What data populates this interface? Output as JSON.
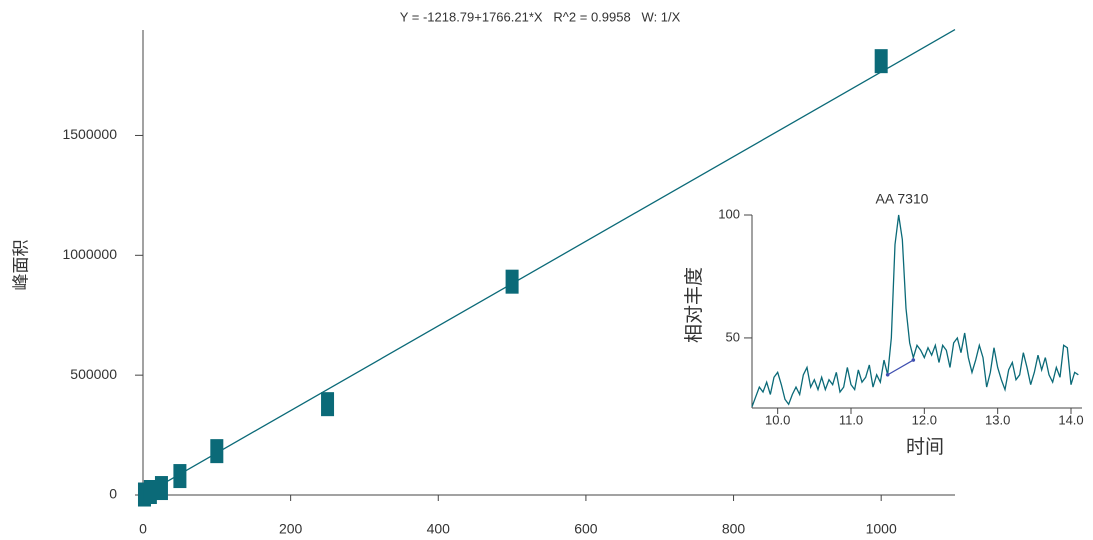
{
  "chart_data": [
    {
      "type": "scatter",
      "title": "Y = -1218.79+1766.21*X   R^2 = 0.9958   W: 1/X",
      "y_label": "峰面积",
      "x": [
        2,
        10,
        25,
        50,
        100,
        250,
        500,
        1000
      ],
      "series": [
        {
          "color": "#0b6a78",
          "values": [
            2000,
            12500,
            29000,
            79000,
            183000,
            379000,
            890000,
            1810000
          ]
        }
      ],
      "fit": {
        "color": "#0b6a78",
        "x": [
          0,
          1100
        ],
        "values": [
          -1218.79,
          1941612.21
        ]
      },
      "xlim": [
        0,
        1100
      ],
      "ylim": [
        0,
        1940000
      ],
      "xticks": [
        0,
        200,
        400,
        600,
        800,
        1000
      ],
      "yticks": [
        0,
        500000,
        1000000,
        1500000
      ]
    },
    {
      "type": "line",
      "annotation": "AA  7310",
      "x_label": "时间",
      "y_label": "相对丰度",
      "x": [
        9.65,
        9.7,
        9.75,
        9.8,
        9.85,
        9.9,
        9.95,
        10.0,
        10.05,
        10.1,
        10.15,
        10.2,
        10.25,
        10.3,
        10.35,
        10.4,
        10.45,
        10.5,
        10.55,
        10.6,
        10.65,
        10.7,
        10.75,
        10.8,
        10.85,
        10.9,
        10.95,
        11.0,
        11.05,
        11.1,
        11.15,
        11.2,
        11.25,
        11.3,
        11.35,
        11.4,
        11.45,
        11.5,
        11.55,
        11.6,
        11.65,
        11.7,
        11.75,
        11.8,
        11.85,
        11.9,
        11.95,
        12.0,
        12.05,
        12.1,
        12.15,
        12.2,
        12.25,
        12.3,
        12.35,
        12.4,
        12.45,
        12.5,
        12.55,
        12.6,
        12.65,
        12.7,
        12.75,
        12.8,
        12.85,
        12.9,
        12.95,
        13.0,
        13.05,
        13.1,
        13.15,
        13.2,
        13.25,
        13.3,
        13.35,
        13.4,
        13.45,
        13.5,
        13.55,
        13.6,
        13.65,
        13.7,
        13.75,
        13.8,
        13.85,
        13.9,
        13.95,
        14.0,
        14.05,
        14.1
      ],
      "series": [
        {
          "color": "#0b6a78",
          "values": [
            22,
            26,
            30,
            28,
            32,
            27,
            34,
            36,
            31,
            25,
            23,
            27,
            30,
            27,
            35,
            38,
            30,
            33,
            29,
            34,
            29,
            33,
            31,
            36,
            28,
            30,
            38,
            31,
            29,
            37,
            32,
            34,
            39,
            30,
            35,
            32,
            41,
            35,
            50,
            88,
            100,
            90,
            62,
            48,
            42,
            47,
            45,
            42,
            46,
            43,
            47,
            40,
            47,
            45,
            38,
            48,
            50,
            44,
            52,
            42,
            36,
            41,
            47,
            42,
            30,
            36,
            46,
            38,
            33,
            29,
            37,
            40,
            33,
            35,
            44,
            38,
            31,
            36,
            43,
            37,
            42,
            35,
            32,
            38,
            34,
            47,
            46,
            31,
            36,
            35
          ]
        }
      ],
      "baseline": {
        "color": "#3f4fb0",
        "x": [
          11.5,
          11.85
        ],
        "values": [
          35,
          41
        ]
      },
      "xlim": [
        9.65,
        14.15
      ],
      "ylim": [
        21.5,
        100
      ],
      "xticks": [
        {
          "value": 10,
          "label": "10.0"
        },
        {
          "value": 11,
          "label": "11.0"
        },
        {
          "value": 12,
          "label": "12.0"
        },
        {
          "value": 13,
          "label": "13.0"
        },
        {
          "value": 14,
          "label": "14.0"
        }
      ],
      "yticks": [
        50,
        100
      ]
    }
  ]
}
